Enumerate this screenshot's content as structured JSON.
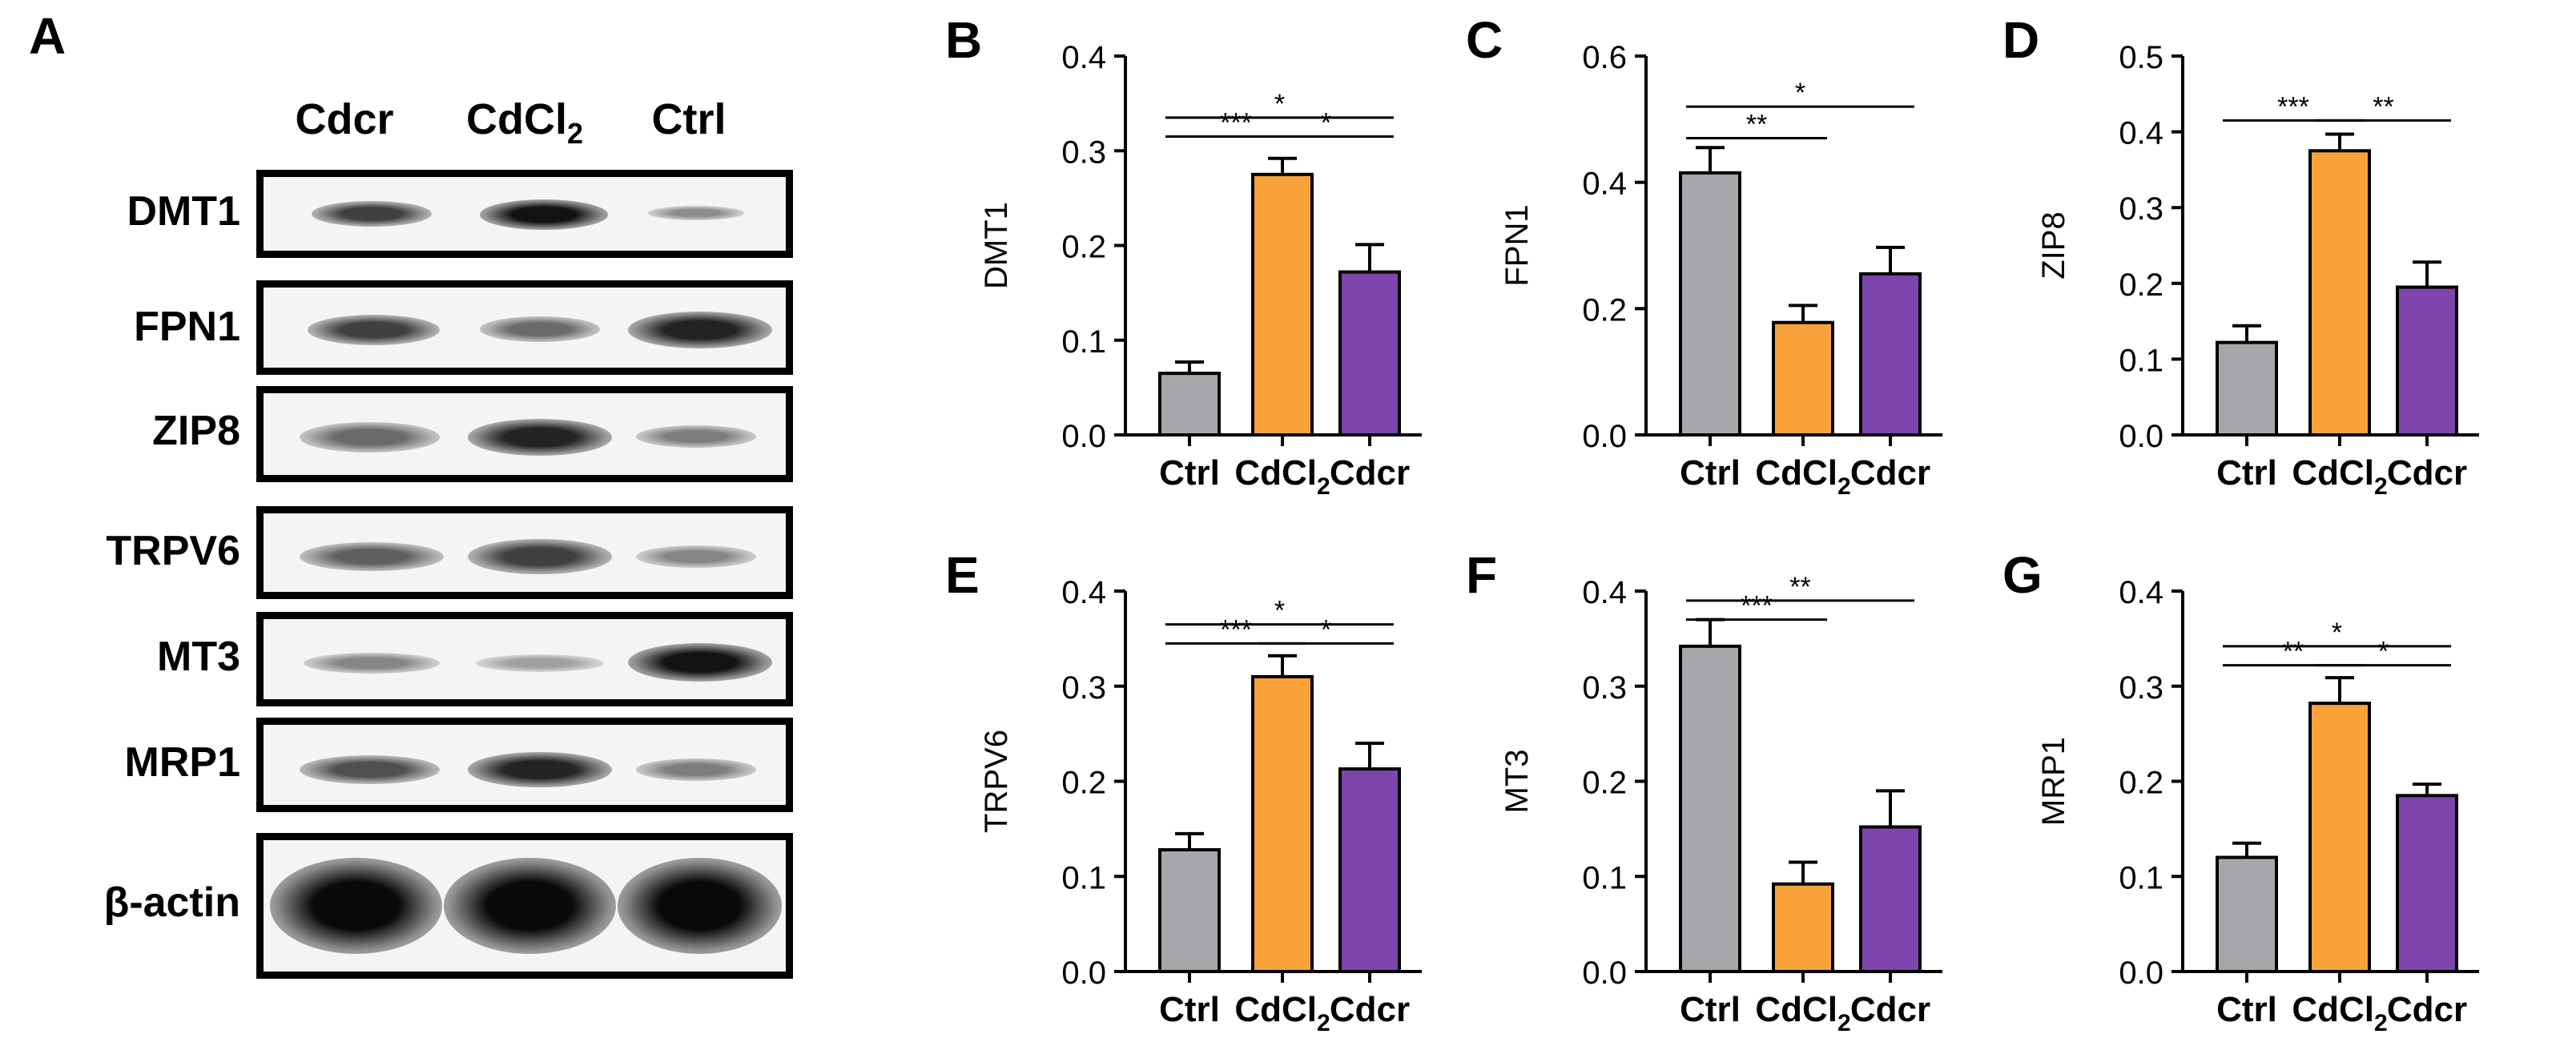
{
  "western_blot": {
    "panel_label": "A",
    "lanes": [
      {
        "label": "Cdcr",
        "sub": ""
      },
      {
        "label": "CdCl",
        "sub": "2"
      },
      {
        "label": "Ctrl",
        "sub": ""
      }
    ],
    "rows": [
      {
        "label": "DMT1",
        "intensities": [
          0.7,
          0.95,
          0.25
        ]
      },
      {
        "label": "FPN1",
        "intensities": [
          0.7,
          0.45,
          0.85
        ]
      },
      {
        "label": "ZIP8",
        "intensities": [
          0.45,
          0.85,
          0.35
        ]
      },
      {
        "label": "TRPV6",
        "intensities": [
          0.5,
          0.7,
          0.3
        ]
      },
      {
        "label": "MT3",
        "intensities": [
          0.3,
          0.15,
          0.95
        ]
      },
      {
        "label": "MRP1",
        "intensities": [
          0.6,
          0.85,
          0.35
        ]
      },
      {
        "label": "β-actin",
        "intensities": [
          1.0,
          1.0,
          1.0
        ]
      }
    ]
  },
  "colors": {
    "ctrl": "#a7a7ab",
    "cdcl2": "#f9a23a",
    "cdcr": "#7f45ae"
  },
  "chart_data": [
    {
      "panel_label": "B",
      "type": "bar",
      "ylabel": "DMT1",
      "ylim": [
        0,
        0.4
      ],
      "yticks": [
        "0.0",
        "0.1",
        "0.2",
        "0.3",
        "0.4"
      ],
      "categories": [
        {
          "label": "Ctrl",
          "sub": ""
        },
        {
          "label": "CdCl",
          "sub": "2"
        },
        {
          "label": "Cdcr",
          "sub": ""
        }
      ],
      "values": [
        0.065,
        0.275,
        0.172
      ],
      "errors": [
        0.012,
        0.017,
        0.029
      ],
      "significance": [
        {
          "pair": [
            0,
            2
          ],
          "label": "*",
          "level": 0.335
        },
        {
          "pair": [
            0,
            1
          ],
          "label": "***",
          "level": 0.315
        },
        {
          "pair": [
            1,
            2
          ],
          "label": "*",
          "level": 0.315
        }
      ]
    },
    {
      "panel_label": "C",
      "type": "bar",
      "ylabel": "FPN1",
      "ylim": [
        0,
        0.6
      ],
      "yticks": [
        "0.0",
        "0.2",
        "0.4",
        "0.6"
      ],
      "categories": [
        {
          "label": "Ctrl",
          "sub": ""
        },
        {
          "label": "CdCl",
          "sub": "2"
        },
        {
          "label": "Cdcr",
          "sub": ""
        }
      ],
      "values": [
        0.415,
        0.178,
        0.255
      ],
      "errors": [
        0.04,
        0.027,
        0.042
      ],
      "significance": [
        {
          "pair": [
            0,
            2
          ],
          "label": "*",
          "level": 0.52
        },
        {
          "pair": [
            0,
            1
          ],
          "label": "**",
          "level": 0.47
        }
      ]
    },
    {
      "panel_label": "D",
      "type": "bar",
      "ylabel": "ZIP8",
      "ylim": [
        0,
        0.5
      ],
      "yticks": [
        "0.0",
        "0.1",
        "0.2",
        "0.3",
        "0.4",
        "0.5"
      ],
      "categories": [
        {
          "label": "Ctrl",
          "sub": ""
        },
        {
          "label": "CdCl",
          "sub": "2"
        },
        {
          "label": "Cdcr",
          "sub": ""
        }
      ],
      "values": [
        0.122,
        0.375,
        0.195
      ],
      "errors": [
        0.022,
        0.022,
        0.033
      ],
      "significance": [
        {
          "pair": [
            0,
            1
          ],
          "label": "***",
          "level": 0.415
        },
        {
          "pair": [
            1,
            2
          ],
          "label": "**",
          "level": 0.415
        }
      ]
    },
    {
      "panel_label": "E",
      "type": "bar",
      "ylabel": "TRPV6",
      "ylim": [
        0,
        0.4
      ],
      "yticks": [
        "0.0",
        "0.1",
        "0.2",
        "0.3",
        "0.4"
      ],
      "categories": [
        {
          "label": "Ctrl",
          "sub": ""
        },
        {
          "label": "CdCl",
          "sub": "2"
        },
        {
          "label": "Cdcr",
          "sub": ""
        }
      ],
      "values": [
        0.128,
        0.31,
        0.213
      ],
      "errors": [
        0.017,
        0.022,
        0.027
      ],
      "significance": [
        {
          "pair": [
            0,
            2
          ],
          "label": "*",
          "level": 0.365
        },
        {
          "pair": [
            0,
            1
          ],
          "label": "***",
          "level": 0.345
        },
        {
          "pair": [
            1,
            2
          ],
          "label": "*",
          "level": 0.345
        }
      ]
    },
    {
      "panel_label": "F",
      "type": "bar",
      "ylabel": "MT3",
      "ylim": [
        0,
        0.4
      ],
      "yticks": [
        "0.0",
        "0.1",
        "0.2",
        "0.3",
        "0.4"
      ],
      "categories": [
        {
          "label": "Ctrl",
          "sub": ""
        },
        {
          "label": "CdCl",
          "sub": "2"
        },
        {
          "label": "Cdcr",
          "sub": ""
        }
      ],
      "values": [
        0.342,
        0.092,
        0.152
      ],
      "errors": [
        0.028,
        0.023,
        0.038
      ],
      "significance": [
        {
          "pair": [
            0,
            2
          ],
          "label": "**",
          "level": 0.39
        },
        {
          "pair": [
            0,
            1
          ],
          "label": "***",
          "level": 0.37
        }
      ]
    },
    {
      "panel_label": "G",
      "type": "bar",
      "ylabel": "MRP1",
      "ylim": [
        0,
        0.4
      ],
      "yticks": [
        "0.0",
        "0.1",
        "0.2",
        "0.3",
        "0.4"
      ],
      "categories": [
        {
          "label": "Ctrl",
          "sub": ""
        },
        {
          "label": "CdCl",
          "sub": "2"
        },
        {
          "label": "Cdcr",
          "sub": ""
        }
      ],
      "values": [
        0.12,
        0.282,
        0.185
      ],
      "errors": [
        0.015,
        0.027,
        0.012
      ],
      "significance": [
        {
          "pair": [
            0,
            2
          ],
          "label": "*",
          "level": 0.342
        },
        {
          "pair": [
            0,
            1
          ],
          "label": "**",
          "level": 0.322
        },
        {
          "pair": [
            1,
            2
          ],
          "label": "*",
          "level": 0.322
        }
      ]
    }
  ]
}
